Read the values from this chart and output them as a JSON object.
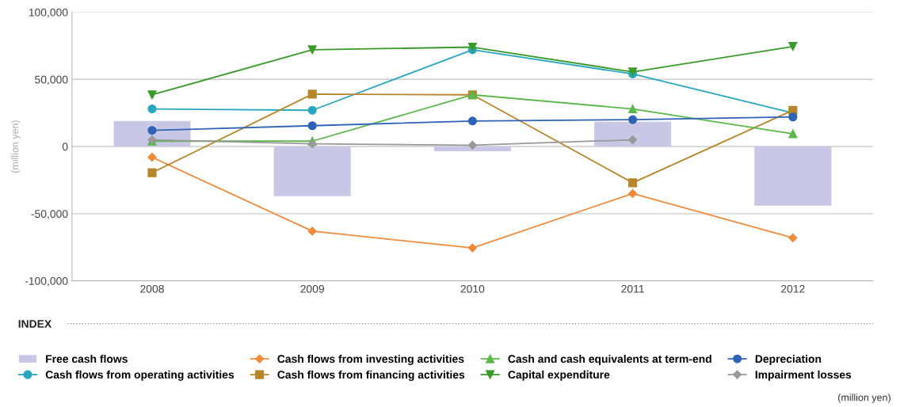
{
  "chart_data": {
    "type": "line",
    "categories": [
      "2008",
      "2009",
      "2010",
      "2011",
      "2012"
    ],
    "ylabel": "(million yen)",
    "legend_title": "INDEX",
    "annotations": [
      "(million yen)"
    ],
    "ylim": [
      -100000,
      100000
    ],
    "yticks": [
      {
        "value": -100000,
        "label": "-100,000"
      },
      {
        "value": -50000,
        "label": "-50,000"
      },
      {
        "value": 0,
        "label": "0"
      },
      {
        "value": 50000,
        "label": "50,000"
      },
      {
        "value": 100000,
        "label": "100,000"
      }
    ],
    "grid": "y",
    "legend": "bottom",
    "series": [
      {
        "name": "Free cash flows",
        "type": "bar",
        "color": "#c8c8e6",
        "values": [
          19000,
          -37000,
          -3500,
          18500,
          -44000
        ]
      },
      {
        "name": "Cash flows from operating activities",
        "color": "#2aa7c0",
        "marker": "circle",
        "values": [
          28000,
          27000,
          72000,
          54000,
          25000
        ]
      },
      {
        "name": "Cash flows from investing activities",
        "color": "#f08a3c",
        "marker": "diamond",
        "values": [
          -8000,
          -63000,
          -75500,
          -35000,
          -68000
        ]
      },
      {
        "name": "Cash flows from financing activities",
        "color": "#b8862a",
        "marker": "square",
        "values": [
          -19500,
          39000,
          38500,
          -27000,
          27000
        ]
      },
      {
        "name": "Cash and cash equivalents at term-end",
        "color": "#5cb84a",
        "marker": "triangle",
        "values": [
          4000,
          4000,
          38500,
          28000,
          9500
        ]
      },
      {
        "name": "Capital expenditure",
        "color": "#3a9a2a",
        "marker": "triangle_down",
        "values": [
          38500,
          72000,
          74000,
          55500,
          74500
        ]
      },
      {
        "name": "Depreciation",
        "color": "#2e63b8",
        "marker": "circle",
        "values": [
          12000,
          15500,
          19000,
          20000,
          22000
        ]
      },
      {
        "name": "Impairment losses",
        "color": "#999999",
        "marker": "diamond",
        "values": [
          5000,
          2000,
          1000,
          5000,
          null
        ]
      }
    ]
  }
}
